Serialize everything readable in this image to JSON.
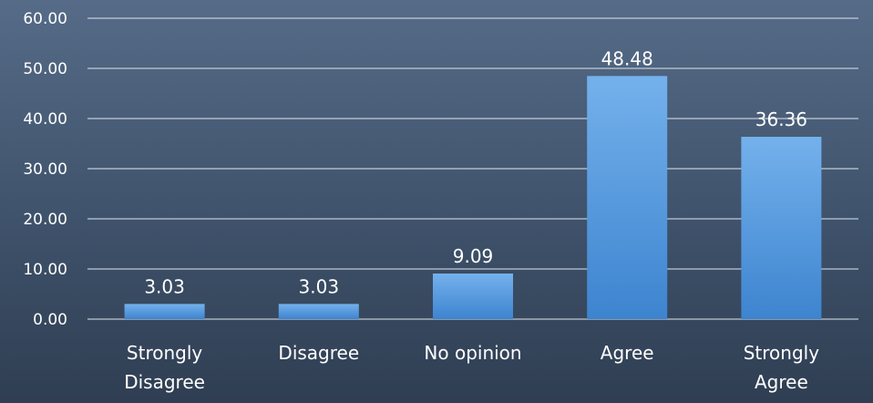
{
  "chart_data": {
    "type": "bar",
    "categories": [
      "Strongly Disagree",
      "Disagree",
      "No opinion",
      "Agree",
      "Strongly Agree"
    ],
    "values": [
      3.03,
      3.03,
      9.09,
      48.48,
      36.36
    ],
    "data_labels": [
      "3.03",
      "3.03",
      "9.09",
      "48.48",
      "36.36"
    ],
    "ylim": [
      0,
      60
    ],
    "yticks": [
      "0.00",
      "10.00",
      "20.00",
      "30.00",
      "40.00",
      "50.00",
      "60.00"
    ],
    "title": "",
    "xlabel": "",
    "ylabel": "",
    "grid": true,
    "legend": "none",
    "colors": {
      "bar_top": "#74b1ec",
      "bar_bottom": "#3d84cf",
      "text": "#ffffff"
    }
  }
}
